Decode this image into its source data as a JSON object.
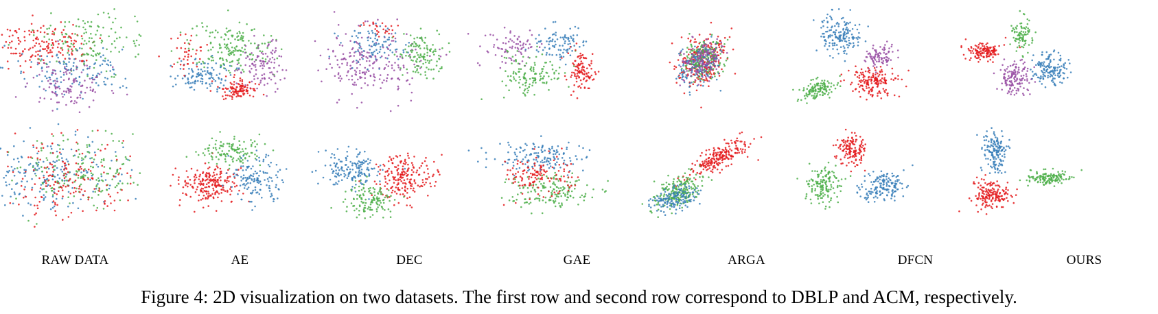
{
  "figure": {
    "caption": "Figure 4: 2D visualization on two datasets. The first row and second row correspond to DBLP and ACM, respectively.",
    "methods": [
      "RAW DATA",
      "AE",
      "DEC",
      "GAE",
      "ARGA",
      "DFCN",
      "OURS"
    ],
    "rows": [
      "DBLP",
      "ACM"
    ],
    "colors": {
      "red": "#e41a1c",
      "green": "#4daf4a",
      "blue": "#377eb8",
      "purple": "#984ea3"
    }
  }
}
